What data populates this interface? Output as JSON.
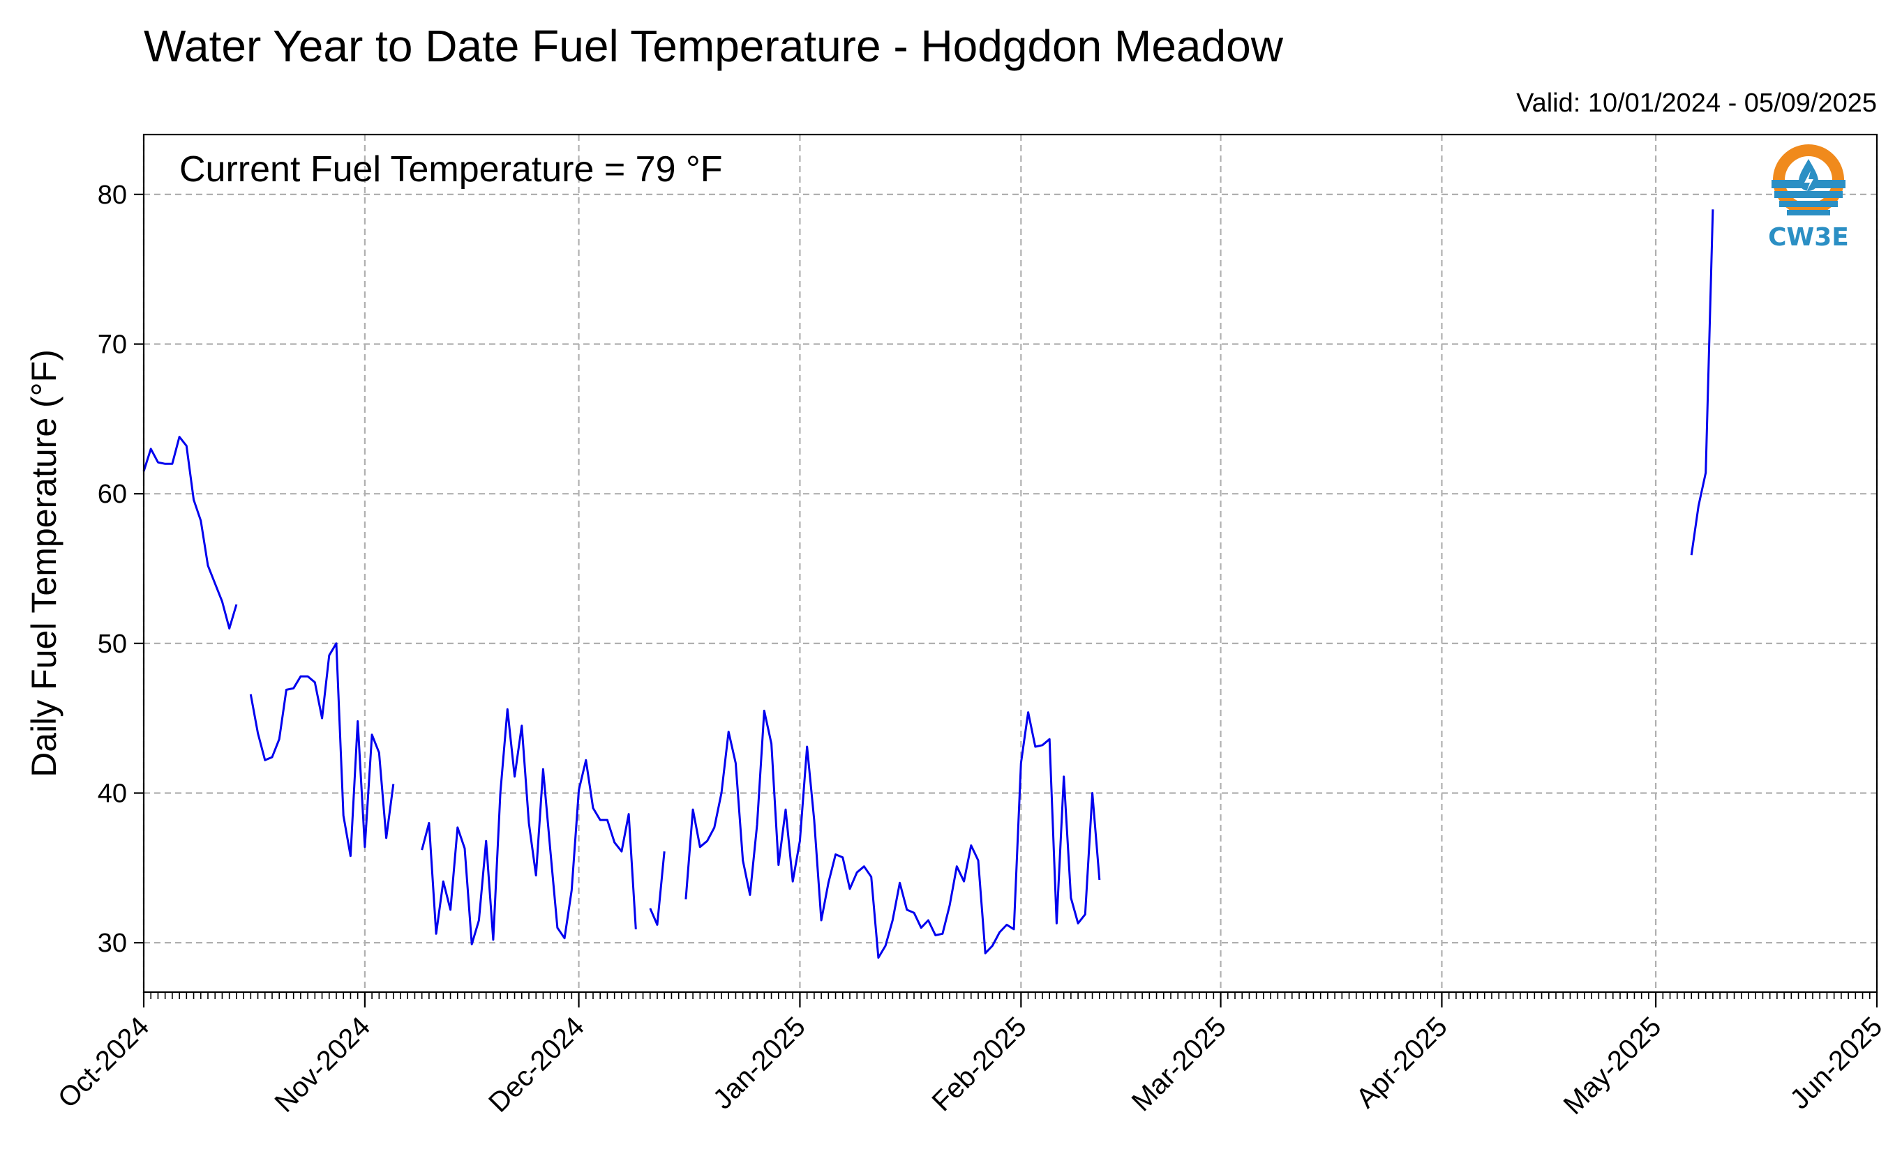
{
  "colors": {
    "series": "#0000ee",
    "grid": "#b0b0b0",
    "logo_orange": "#f08a1c",
    "logo_blue": "#2b8fc4"
  },
  "logo": {
    "text": "CW3E",
    "icon": "water-drop-logo-icon"
  },
  "chart_data": {
    "type": "line",
    "title": "Water Year to Date Fuel Temperature - Hodgdon Meadow",
    "subtitle": "Valid: 10/01/2024 - 05/09/2025",
    "annotation": "Current Fuel Temperature = 79 °F",
    "ylabel": "Daily Fuel Temperature (°F)",
    "xlabel": "",
    "ylim": [
      26.7,
      84
    ],
    "xlim": [
      "2024-10-01",
      "2025-06-01"
    ],
    "yticks": [
      30,
      40,
      50,
      60,
      70,
      80
    ],
    "xticks": [
      {
        "date": "2024-10-01",
        "label": "Oct-2024"
      },
      {
        "date": "2024-11-01",
        "label": "Nov-2024"
      },
      {
        "date": "2024-12-01",
        "label": "Dec-2024"
      },
      {
        "date": "2025-01-01",
        "label": "Jan-2025"
      },
      {
        "date": "2025-02-01",
        "label": "Feb-2025"
      },
      {
        "date": "2025-03-01",
        "label": "Mar-2025"
      },
      {
        "date": "2025-04-01",
        "label": "Apr-2025"
      },
      {
        "date": "2025-05-01",
        "label": "May-2025"
      },
      {
        "date": "2025-06-01",
        "label": "Jun-2025"
      }
    ],
    "grid": true,
    "series": [
      {
        "values": [
          [
            "2024-10-01",
            61.5
          ],
          [
            "2024-10-02",
            63.0
          ],
          [
            "2024-10-03",
            62.1
          ],
          [
            "2024-10-04",
            62.0
          ],
          [
            "2024-10-05",
            62.0
          ],
          [
            "2024-10-06",
            63.8
          ],
          [
            "2024-10-07",
            63.2
          ],
          [
            "2024-10-08",
            59.6
          ],
          [
            "2024-10-09",
            58.2
          ],
          [
            "2024-10-10",
            55.2
          ],
          [
            "2024-10-11",
            54.0
          ],
          [
            "2024-10-12",
            52.8
          ],
          [
            "2024-10-13",
            51.0
          ],
          [
            "2024-10-14",
            52.6
          ],
          [
            "2024-10-15",
            null
          ],
          [
            "2024-10-16",
            46.6
          ],
          [
            "2024-10-17",
            44.0
          ],
          [
            "2024-10-18",
            42.2
          ],
          [
            "2024-10-19",
            42.4
          ],
          [
            "2024-10-20",
            43.6
          ],
          [
            "2024-10-21",
            46.9
          ],
          [
            "2024-10-22",
            47.0
          ],
          [
            "2024-10-23",
            47.8
          ],
          [
            "2024-10-24",
            47.8
          ],
          [
            "2024-10-25",
            47.4
          ],
          [
            "2024-10-26",
            45.0
          ],
          [
            "2024-10-27",
            49.2
          ],
          [
            "2024-10-28",
            50.0
          ],
          [
            "2024-10-29",
            38.5
          ],
          [
            "2024-10-30",
            35.8
          ],
          [
            "2024-10-31",
            44.8
          ],
          [
            "2024-11-01",
            36.4
          ],
          [
            "2024-11-02",
            43.9
          ],
          [
            "2024-11-03",
            42.7
          ],
          [
            "2024-11-04",
            37.0
          ],
          [
            "2024-11-05",
            40.6
          ],
          [
            "2024-11-06",
            null
          ],
          [
            "2024-11-09",
            36.2
          ],
          [
            "2024-11-10",
            38.0
          ],
          [
            "2024-11-11",
            30.6
          ],
          [
            "2024-11-12",
            34.1
          ],
          [
            "2024-11-13",
            32.2
          ],
          [
            "2024-11-14",
            37.7
          ],
          [
            "2024-11-15",
            36.3
          ],
          [
            "2024-11-16",
            29.9
          ],
          [
            "2024-11-17",
            31.5
          ],
          [
            "2024-11-18",
            36.8
          ],
          [
            "2024-11-19",
            30.2
          ],
          [
            "2024-11-20",
            40.0
          ],
          [
            "2024-11-21",
            45.6
          ],
          [
            "2024-11-22",
            41.1
          ],
          [
            "2024-11-23",
            44.5
          ],
          [
            "2024-11-24",
            38.0
          ],
          [
            "2024-11-25",
            34.5
          ],
          [
            "2024-11-26",
            41.6
          ],
          [
            "2024-11-27",
            36.2
          ],
          [
            "2024-11-28",
            31.0
          ],
          [
            "2024-11-29",
            30.3
          ],
          [
            "2024-11-30",
            33.5
          ],
          [
            "2024-12-01",
            40.2
          ],
          [
            "2024-12-02",
            42.2
          ],
          [
            "2024-12-03",
            39.0
          ],
          [
            "2024-12-04",
            38.2
          ],
          [
            "2024-12-05",
            38.2
          ],
          [
            "2024-12-06",
            36.7
          ],
          [
            "2024-12-07",
            36.1
          ],
          [
            "2024-12-08",
            38.6
          ],
          [
            "2024-12-09",
            30.9
          ],
          [
            "2024-12-10",
            null
          ],
          [
            "2024-12-11",
            32.3
          ],
          [
            "2024-12-12",
            31.2
          ],
          [
            "2024-12-13",
            36.1
          ],
          [
            "2024-12-14",
            null
          ],
          [
            "2024-12-16",
            32.9
          ],
          [
            "2024-12-17",
            38.9
          ],
          [
            "2024-12-18",
            36.4
          ],
          [
            "2024-12-19",
            36.8
          ],
          [
            "2024-12-20",
            37.7
          ],
          [
            "2024-12-21",
            40.0
          ],
          [
            "2024-12-22",
            44.1
          ],
          [
            "2024-12-23",
            42.0
          ],
          [
            "2024-12-24",
            35.5
          ],
          [
            "2024-12-25",
            33.2
          ],
          [
            "2024-12-26",
            37.9
          ],
          [
            "2024-12-27",
            45.5
          ],
          [
            "2024-12-28",
            43.3
          ],
          [
            "2024-12-29",
            35.2
          ],
          [
            "2024-12-30",
            38.9
          ],
          [
            "2024-12-31",
            34.1
          ],
          [
            "2025-01-01",
            36.8
          ],
          [
            "2025-01-02",
            43.1
          ],
          [
            "2025-01-03",
            38.2
          ],
          [
            "2025-01-04",
            31.5
          ],
          [
            "2025-01-05",
            34.0
          ],
          [
            "2025-01-06",
            35.9
          ],
          [
            "2025-01-07",
            35.7
          ],
          [
            "2025-01-08",
            33.6
          ],
          [
            "2025-01-09",
            34.7
          ],
          [
            "2025-01-10",
            35.1
          ],
          [
            "2025-01-11",
            34.4
          ],
          [
            "2025-01-12",
            29.0
          ],
          [
            "2025-01-13",
            29.8
          ],
          [
            "2025-01-14",
            31.5
          ],
          [
            "2025-01-15",
            34.0
          ],
          [
            "2025-01-16",
            32.2
          ],
          [
            "2025-01-17",
            32.0
          ],
          [
            "2025-01-18",
            31.0
          ],
          [
            "2025-01-19",
            31.5
          ],
          [
            "2025-01-20",
            30.5
          ],
          [
            "2025-01-21",
            30.6
          ],
          [
            "2025-01-22",
            32.5
          ],
          [
            "2025-01-23",
            35.1
          ],
          [
            "2025-01-24",
            34.1
          ],
          [
            "2025-01-25",
            36.5
          ],
          [
            "2025-01-26",
            35.5
          ],
          [
            "2025-01-27",
            29.3
          ],
          [
            "2025-01-28",
            29.8
          ],
          [
            "2025-01-29",
            30.7
          ],
          [
            "2025-01-30",
            31.2
          ],
          [
            "2025-01-31",
            30.9
          ],
          [
            "2025-02-01",
            42.0
          ],
          [
            "2025-02-02",
            45.4
          ],
          [
            "2025-02-03",
            43.1
          ],
          [
            "2025-02-04",
            43.2
          ],
          [
            "2025-02-05",
            43.6
          ],
          [
            "2025-02-06",
            31.3
          ],
          [
            "2025-02-07",
            41.1
          ],
          [
            "2025-02-08",
            33.0
          ],
          [
            "2025-02-09",
            31.3
          ],
          [
            "2025-02-10",
            31.9
          ],
          [
            "2025-02-11",
            40.0
          ],
          [
            "2025-02-12",
            34.2
          ],
          [
            "2025-02-13",
            null
          ],
          [
            "2025-05-06",
            55.9
          ],
          [
            "2025-05-07",
            59.2
          ],
          [
            "2025-05-08",
            61.4
          ],
          [
            "2025-05-09",
            79.0
          ]
        ]
      }
    ]
  }
}
